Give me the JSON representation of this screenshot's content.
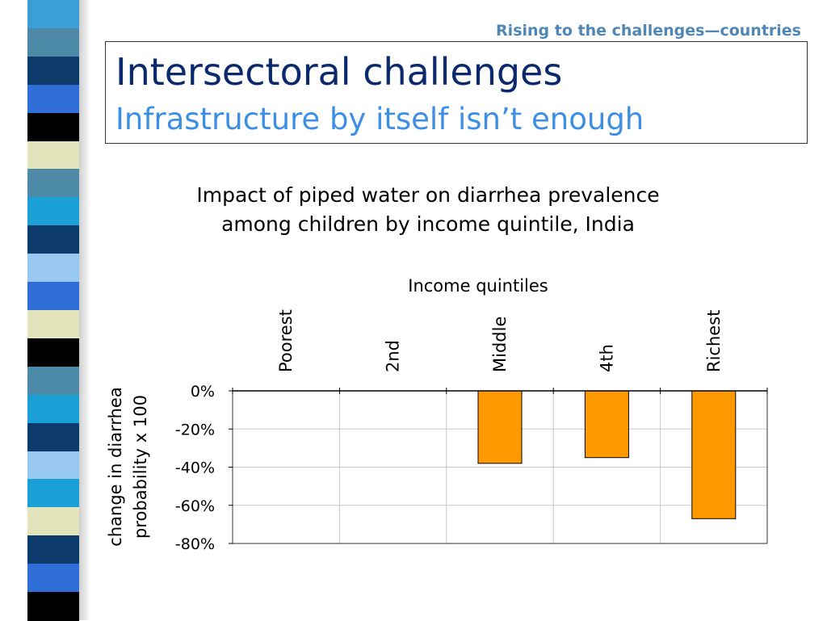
{
  "header": {
    "section_label": "Rising to the challenges—countries",
    "title": "Intersectoral challenges",
    "subtitle": "Infrastructure by itself isn’t enough"
  },
  "decor": {
    "stripe_colors": [
      "#3a9fd6",
      "#4c8aa8",
      "#0b3a6b",
      "#2f6ed6",
      "#000000",
      "#e4e4bc",
      "#4c8aa8",
      "#1ba0d6",
      "#0b3a6b",
      "#99c8f0",
      "#2f6ed6",
      "#e4e4bc",
      "#000000",
      "#4c8aa8",
      "#1ba0d6",
      "#0b3a6b",
      "#99c8f0",
      "#1ba0d6",
      "#e4e4bc",
      "#0b3a6b",
      "#2f6ed6",
      "#000000"
    ]
  },
  "chart_data": {
    "type": "bar",
    "title_lines": [
      "Impact of piped water on diarrhea prevalence",
      "among children by income quintile, India"
    ],
    "xlabel": "Income quintiles",
    "ylabel_lines": [
      "change in diarrhea",
      "probability x 100"
    ],
    "categories": [
      "Poorest",
      "2nd",
      "Middle",
      "4th",
      "Richest"
    ],
    "values": [
      null,
      null,
      -38,
      -35,
      -67
    ],
    "ylim": [
      -80,
      0
    ],
    "yticks": [
      0,
      -20,
      -40,
      -60,
      -80
    ],
    "ytick_labels": [
      "0%",
      "-20%",
      "-40%",
      "-60%",
      "-80%"
    ],
    "bar_color": "#ff9900",
    "grid": true,
    "x_axis_position": "top"
  }
}
